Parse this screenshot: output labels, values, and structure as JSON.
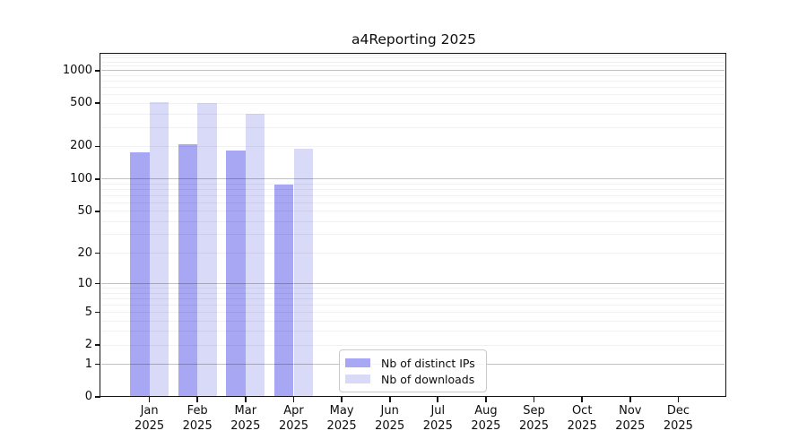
{
  "figure": {
    "background": "#ffffff",
    "text_color": "#0d0d0d"
  },
  "chart_data": {
    "type": "bar",
    "title": "a4Reporting 2025",
    "scale": "log1p",
    "ylim": [
      0,
      1400
    ],
    "y_ticks": [
      0,
      1,
      2,
      5,
      10,
      20,
      50,
      100,
      200,
      500,
      1000
    ],
    "categories": [
      "Jan",
      "Feb",
      "Mar",
      "Apr",
      "May",
      "Jun",
      "Jul",
      "Aug",
      "Sep",
      "Oct",
      "Nov",
      "Dec"
    ],
    "x_year_label": "2025",
    "series": [
      {
        "name": "Nb of distinct IPs",
        "color": "#a7a7f4",
        "values": [
          175,
          209,
          185,
          88,
          0,
          0,
          0,
          0,
          0,
          0,
          0,
          0
        ]
      },
      {
        "name": "Nb of downloads",
        "color": "#d9d9f8",
        "values": [
          512,
          503,
          401,
          191,
          0,
          0,
          0,
          0,
          0,
          0,
          0,
          0
        ]
      }
    ],
    "grid": {
      "major": [
        1,
        10,
        100,
        1000
      ],
      "minor": [
        2,
        3,
        4,
        5,
        6,
        7,
        8,
        9,
        20,
        30,
        40,
        50,
        60,
        70,
        80,
        90,
        200,
        300,
        400,
        500,
        600,
        700,
        800,
        900,
        1100,
        1200,
        1300,
        1400
      ]
    },
    "legend": {
      "position": "lower-center-inside"
    }
  }
}
